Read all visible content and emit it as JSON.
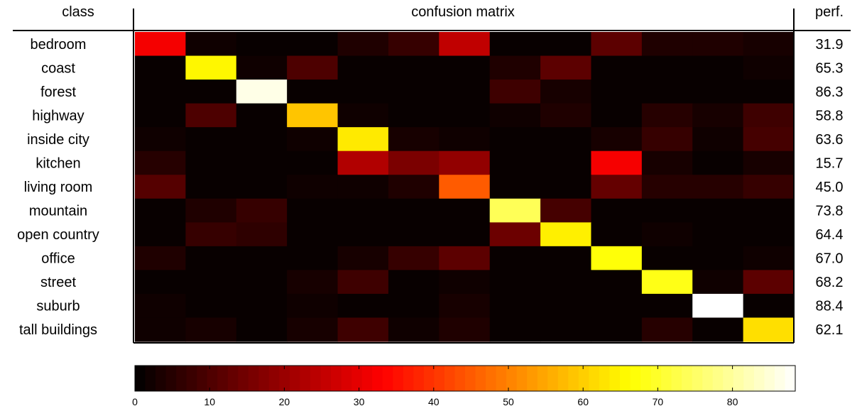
{
  "chart_data": {
    "type": "heatmap",
    "title": "confusion matrix",
    "row_header": "class",
    "perf_header": "perf.",
    "classes": [
      "bedroom",
      "coast",
      "forest",
      "highway",
      "inside city",
      "kitchen",
      "living room",
      "mountain",
      "open country",
      "office",
      "street",
      "suburb",
      "tall buildings"
    ],
    "perf": [
      "31.9",
      "65.3",
      "86.3",
      "58.8",
      "63.6",
      "15.7",
      "45.0",
      "73.8",
      "64.4",
      "67.0",
      "68.2",
      "88.4",
      "62.1"
    ],
    "matrix": [
      [
        31.9,
        2,
        1,
        1,
        4,
        7,
        25,
        1,
        1,
        12,
        4,
        4,
        3
      ],
      [
        1,
        65.3,
        2,
        10,
        1,
        1,
        1,
        4,
        12,
        1,
        1,
        1,
        2
      ],
      [
        1,
        1,
        86.3,
        1,
        1,
        1,
        1,
        8,
        3,
        1,
        1,
        1,
        1
      ],
      [
        1,
        10,
        1,
        58.8,
        2,
        1,
        1,
        2,
        4,
        1,
        5,
        3,
        8
      ],
      [
        2,
        1,
        1,
        2,
        63.6,
        3,
        2,
        1,
        1,
        3,
        7,
        2,
        9
      ],
      [
        5,
        1,
        1,
        1,
        23,
        16,
        19,
        1,
        1,
        32,
        3,
        1,
        3
      ],
      [
        11,
        1,
        1,
        2,
        2,
        4,
        45.0,
        1,
        1,
        13,
        5,
        5,
        7
      ],
      [
        1,
        4,
        7,
        1,
        1,
        1,
        1,
        73.8,
        9,
        1,
        1,
        1,
        1
      ],
      [
        1,
        7,
        6,
        1,
        1,
        1,
        1,
        14,
        64.4,
        1,
        2,
        1,
        1
      ],
      [
        4,
        1,
        1,
        1,
        3,
        7,
        12,
        1,
        1,
        67.0,
        1,
        1,
        2
      ],
      [
        1,
        1,
        1,
        3,
        8,
        1,
        2,
        1,
        1,
        1,
        68.2,
        2,
        12
      ],
      [
        2,
        1,
        1,
        2,
        1,
        1,
        3,
        1,
        1,
        1,
        1,
        88.4,
        1
      ],
      [
        2,
        3,
        1,
        3,
        8,
        2,
        4,
        1,
        1,
        1,
        5,
        1,
        62.1
      ]
    ],
    "colormap": "hot",
    "colorbar": {
      "min": 0,
      "max": 88.4,
      "ticks": [
        0,
        10,
        20,
        30,
        40,
        50,
        60,
        70,
        80
      ]
    }
  }
}
